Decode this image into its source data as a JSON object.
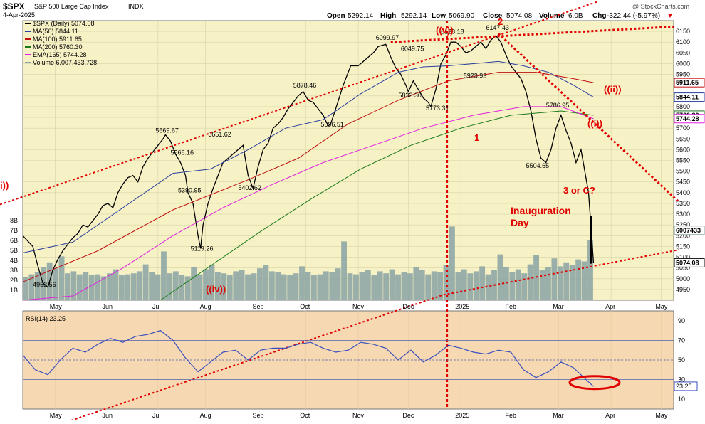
{
  "header": {
    "symbol": "$SPX",
    "name": "S&P 500 Large Cap Index",
    "exchange": "INDX",
    "date": "4-Apr-2025",
    "watermark": "@ StockCharts.com",
    "open_label": "Open",
    "open": "5292.14",
    "high_label": "High",
    "high": "5292.14",
    "low_label": "Low",
    "low": "5069.90",
    "close_label": "Close",
    "close": "5074.08",
    "volume_label": "Volume",
    "volume": "6.0B",
    "chg_label": "Chg",
    "chg": "-322.44 (-5.97%)"
  },
  "legend": [
    {
      "label": "$SPX (Daily) 5074.08",
      "color": "#000000"
    },
    {
      "label": "MA(50) 5844.11",
      "color": "#2a3fa0"
    },
    {
      "label": "MA(100) 5911.65",
      "color": "#c01010"
    },
    {
      "label": "MA(200) 5760.30",
      "color": "#1a7a1a"
    },
    {
      "label": "EMA(165) 5744.28",
      "color": "#e020e0"
    },
    {
      "label": "Volume 6,007,433,728",
      "color": "#8aa3a3"
    }
  ],
  "rsi_label": "RSI(14) 23.25",
  "colors": {
    "price_bg": "#f7f2c6",
    "rsi_bg": "#f6d8b2",
    "up": "#000000",
    "down": "#000000",
    "ma50": "#2a3fa0",
    "ma100": "#c01010",
    "ma200": "#1a7a1a",
    "ema165": "#e020e0",
    "volume": "#8aa3a3",
    "annotation": "#e00000",
    "rsi_line": "#3a4fc0"
  },
  "annotations": {
    "v_wave": "((v))",
    "wave_2": "2",
    "wave_1": "1",
    "iv_wave": "((iv))",
    "i_wave": "((i))",
    "ii_wave": "((ii))",
    "left_wave": "i))",
    "three_or_c": "3 or C?",
    "inauguration_1": "Inauguration",
    "inauguration_2": "Day"
  },
  "price_labels": [
    {
      "text": "4953.56",
      "x": 8,
      "y": 4953.56
    },
    {
      "text": "5669.67",
      "x": 57,
      "y": 5669.67
    },
    {
      "text": "5566.16",
      "x": 63,
      "y": 5566.16
    },
    {
      "text": "5390.95",
      "x": 66,
      "y": 5390.95
    },
    {
      "text": "5119.26",
      "x": 71,
      "y": 5119.26
    },
    {
      "text": "5651.62",
      "x": 78,
      "y": 5651.62
    },
    {
      "text": "5402.62",
      "x": 90,
      "y": 5402.62
    },
    {
      "text": "5878.46",
      "x": 112,
      "y": 5878.46
    },
    {
      "text": "5696.51",
      "x": 123,
      "y": 5696.51
    },
    {
      "text": "6099.97",
      "x": 145,
      "y": 6099.97
    },
    {
      "text": "6049.75",
      "x": 155,
      "y": 6049.75
    },
    {
      "text": "5832.30",
      "x": 154,
      "y": 5832.3
    },
    {
      "text": "5773.31",
      "x": 165,
      "y": 5773.31
    },
    {
      "text": "6128.18",
      "x": 171,
      "y": 6128.18
    },
    {
      "text": "6147.43",
      "x": 189,
      "y": 6147.43
    },
    {
      "text": "5923.93",
      "x": 180,
      "y": 5923.93
    },
    {
      "text": "5786.95",
      "x": 213,
      "y": 5786.95
    },
    {
      "text": "5504.65",
      "x": 205,
      "y": 5504.65
    }
  ],
  "chart_data": {
    "type": "line",
    "title": "$SPX S&P 500 Large Cap Index",
    "ylim": [
      4900,
      6200
    ],
    "y_ticks": [
      4950,
      5000,
      5050,
      5100,
      5150,
      5200,
      5250,
      5300,
      5350,
      5400,
      5450,
      5500,
      5550,
      5600,
      5650,
      5700,
      5750,
      5800,
      5850,
      5900,
      5950,
      6000,
      6050,
      6100,
      6150
    ],
    "x_ticks": [
      {
        "label": "May",
        "x": 13
      },
      {
        "label": "Jun",
        "x": 34
      },
      {
        "label": "Jul",
        "x": 54
      },
      {
        "label": "Aug",
        "x": 73
      },
      {
        "label": "Sep",
        "x": 94
      },
      {
        "label": "Oct",
        "x": 113
      },
      {
        "label": "Nov",
        "x": 134
      },
      {
        "label": "Dec",
        "x": 154
      },
      {
        "label": "2025",
        "x": 175
      },
      {
        "label": "Feb",
        "x": 195
      },
      {
        "label": "Mar",
        "x": 214
      },
      {
        "label": "Apr",
        "x": 235
      },
      {
        "label": "May",
        "x": 255
      }
    ],
    "right_axis_badges": [
      {
        "text": "5911.65",
        "y": 5911.65,
        "color": "#c01010"
      },
      {
        "text": "5844.11",
        "y": 5844.11,
        "color": "#2a3fa0"
      },
      {
        "text": "5760.30",
        "y": 5760.3,
        "color": "#1a7a1a"
      },
      {
        "text": "5744.28",
        "y": 5744.28,
        "color": "#e020e0"
      },
      {
        "text": "6007433",
        "y": 5225,
        "color": "#8aa3a3"
      },
      {
        "text": "5074.08",
        "y": 5074.08,
        "color": "#000000"
      }
    ],
    "volume_ticks": [
      "1B",
      "2B",
      "3B",
      "4B",
      "5B",
      "6B",
      "7B",
      "8B"
    ],
    "series": [
      {
        "name": "$SPX (Daily)",
        "kind": "close",
        "x": [
          0,
          4,
          6,
          8,
          10,
          12,
          14,
          16,
          18,
          20,
          22,
          24,
          26,
          28,
          30,
          32,
          34,
          36,
          38,
          40,
          42,
          44,
          46,
          48,
          50,
          52,
          54,
          56,
          57,
          59,
          61,
          63,
          65,
          66,
          68,
          70,
          71,
          72,
          74,
          76,
          78,
          80,
          82,
          84,
          86,
          88,
          90,
          92,
          94,
          96,
          98,
          100,
          102,
          104,
          106,
          108,
          110,
          112,
          114,
          116,
          118,
          120,
          122,
          123,
          125,
          128,
          131,
          134,
          137,
          140,
          142,
          145,
          147,
          149,
          151,
          153,
          154,
          156,
          158,
          160,
          162,
          163,
          165,
          167,
          169,
          171,
          173,
          175,
          177,
          179,
          181,
          183,
          185,
          187,
          189,
          191,
          193,
          195,
          197,
          199,
          201,
          203,
          205,
          207,
          209,
          211,
          213,
          215,
          217,
          219,
          221,
          223,
          226,
          228
        ],
        "y": [
          5200,
          5150,
          5060,
          4980,
          4960,
          5040,
          5090,
          5130,
          5160,
          5190,
          5210,
          5250,
          5240,
          5270,
          5300,
          5340,
          5350,
          5330,
          5400,
          5440,
          5470,
          5480,
          5450,
          5520,
          5560,
          5590,
          5620,
          5650,
          5669,
          5640,
          5580,
          5540,
          5480,
          5400,
          5350,
          5200,
          5140,
          5250,
          5350,
          5420,
          5480,
          5540,
          5560,
          5580,
          5600,
          5620,
          5480,
          5420,
          5520,
          5600,
          5630,
          5700,
          5720,
          5750,
          5790,
          5820,
          5850,
          5870,
          5830,
          5820,
          5790,
          5760,
          5710,
          5720,
          5790,
          5900,
          5990,
          5990,
          6020,
          6050,
          6080,
          6090,
          6030,
          5980,
          5950,
          5900,
          5870,
          5920,
          5880,
          5840,
          5820,
          5800,
          5880,
          6000,
          6040,
          6100,
          6100,
          6080,
          6050,
          6060,
          6080,
          6100,
          6070,
          6110,
          6130,
          6100,
          6040,
          5990,
          5960,
          5930,
          5870,
          5780,
          5650,
          5560,
          5540,
          5600,
          5700,
          5760,
          5690,
          5630,
          5540,
          5600,
          5400,
          5074
        ]
      },
      {
        "name": "MA(50)",
        "x": [
          0,
          20,
          40,
          60,
          75,
          90,
          105,
          120,
          135,
          150,
          160,
          170,
          180,
          190,
          200,
          210,
          220,
          228
        ],
        "y": [
          5120,
          5170,
          5330,
          5490,
          5510,
          5600,
          5700,
          5740,
          5860,
          5960,
          5985,
          5990,
          6000,
          6010,
          5990,
          5960,
          5900,
          5844
        ]
      },
      {
        "name": "MA(100)",
        "x": [
          0,
          30,
          60,
          90,
          110,
          130,
          150,
          170,
          190,
          205,
          220,
          228
        ],
        "y": [
          4985,
          5130,
          5320,
          5460,
          5560,
          5720,
          5830,
          5920,
          5960,
          5960,
          5930,
          5912
        ]
      },
      {
        "name": "MA(200)",
        "x": [
          55,
          75,
          95,
          115,
          135,
          155,
          175,
          195,
          215,
          228
        ],
        "y": [
          4900,
          5060,
          5220,
          5370,
          5510,
          5620,
          5700,
          5760,
          5780,
          5760
        ]
      },
      {
        "name": "EMA(165)",
        "x": [
          0,
          20,
          40,
          60,
          80,
          100,
          120,
          140,
          160,
          180,
          200,
          215,
          228
        ],
        "y": [
          4900,
          4920,
          5050,
          5200,
          5330,
          5440,
          5540,
          5620,
          5700,
          5760,
          5800,
          5800,
          5744
        ]
      }
    ],
    "volume_bars_b": [
      2.3,
      2.6,
      2.8,
      3.3,
      3.8,
      3.2,
      4.4,
      2.7,
      2.9,
      2.6,
      2.8,
      2.5,
      2.6,
      2.4,
      2.7,
      3.1,
      2.5,
      2.6,
      2.7,
      2.9,
      3.6,
      2.8,
      2.6,
      4.9,
      2.7,
      2.9,
      2.5,
      2.4,
      3.3,
      2.6,
      3.1,
      3.5,
      2.8,
      2.7,
      2.5,
      2.9,
      3.0,
      2.6,
      2.7,
      3.2,
      3.5,
      2.9,
      2.8,
      2.6,
      2.5,
      2.7,
      3.4,
      2.8,
      2.5,
      2.6,
      2.9,
      2.8,
      3.2,
      5.9,
      2.7,
      2.6,
      2.8,
      3.0,
      2.5,
      2.9,
      2.7,
      3.1,
      2.6,
      2.8,
      2.7,
      3.3,
      3.0,
      2.6,
      2.9,
      2.8,
      3.5,
      7.4,
      2.8,
      3.1,
      2.7,
      2.9,
      3.4,
      2.6,
      3.0,
      4.6,
      3.3,
      2.8,
      3.1,
      2.7,
      3.6,
      4.5,
      3.0,
      3.3,
      4.2,
      3.4,
      3.8,
      3.5,
      4.1,
      3.9,
      6.0
    ],
    "rsi": {
      "name": "RSI(14)",
      "ylim": [
        0,
        100
      ],
      "y_ticks": [
        10,
        30,
        50,
        70,
        90
      ],
      "lines": [
        30,
        50,
        70
      ],
      "current": "23.25",
      "x": [
        0,
        5,
        10,
        15,
        20,
        25,
        30,
        35,
        40,
        45,
        50,
        55,
        60,
        65,
        70,
        75,
        80,
        85,
        90,
        95,
        100,
        105,
        110,
        115,
        120,
        125,
        130,
        135,
        140,
        145,
        150,
        155,
        160,
        165,
        170,
        175,
        180,
        185,
        190,
        195,
        200,
        205,
        210,
        215,
        220,
        225,
        228
      ],
      "y": [
        55,
        40,
        35,
        50,
        62,
        58,
        66,
        72,
        68,
        74,
        76,
        80,
        70,
        52,
        38,
        48,
        58,
        60,
        50,
        60,
        62,
        62,
        66,
        68,
        62,
        58,
        60,
        68,
        66,
        62,
        50,
        60,
        48,
        55,
        65,
        62,
        58,
        56,
        60,
        58,
        40,
        32,
        38,
        48,
        42,
        30,
        23
      ]
    }
  }
}
